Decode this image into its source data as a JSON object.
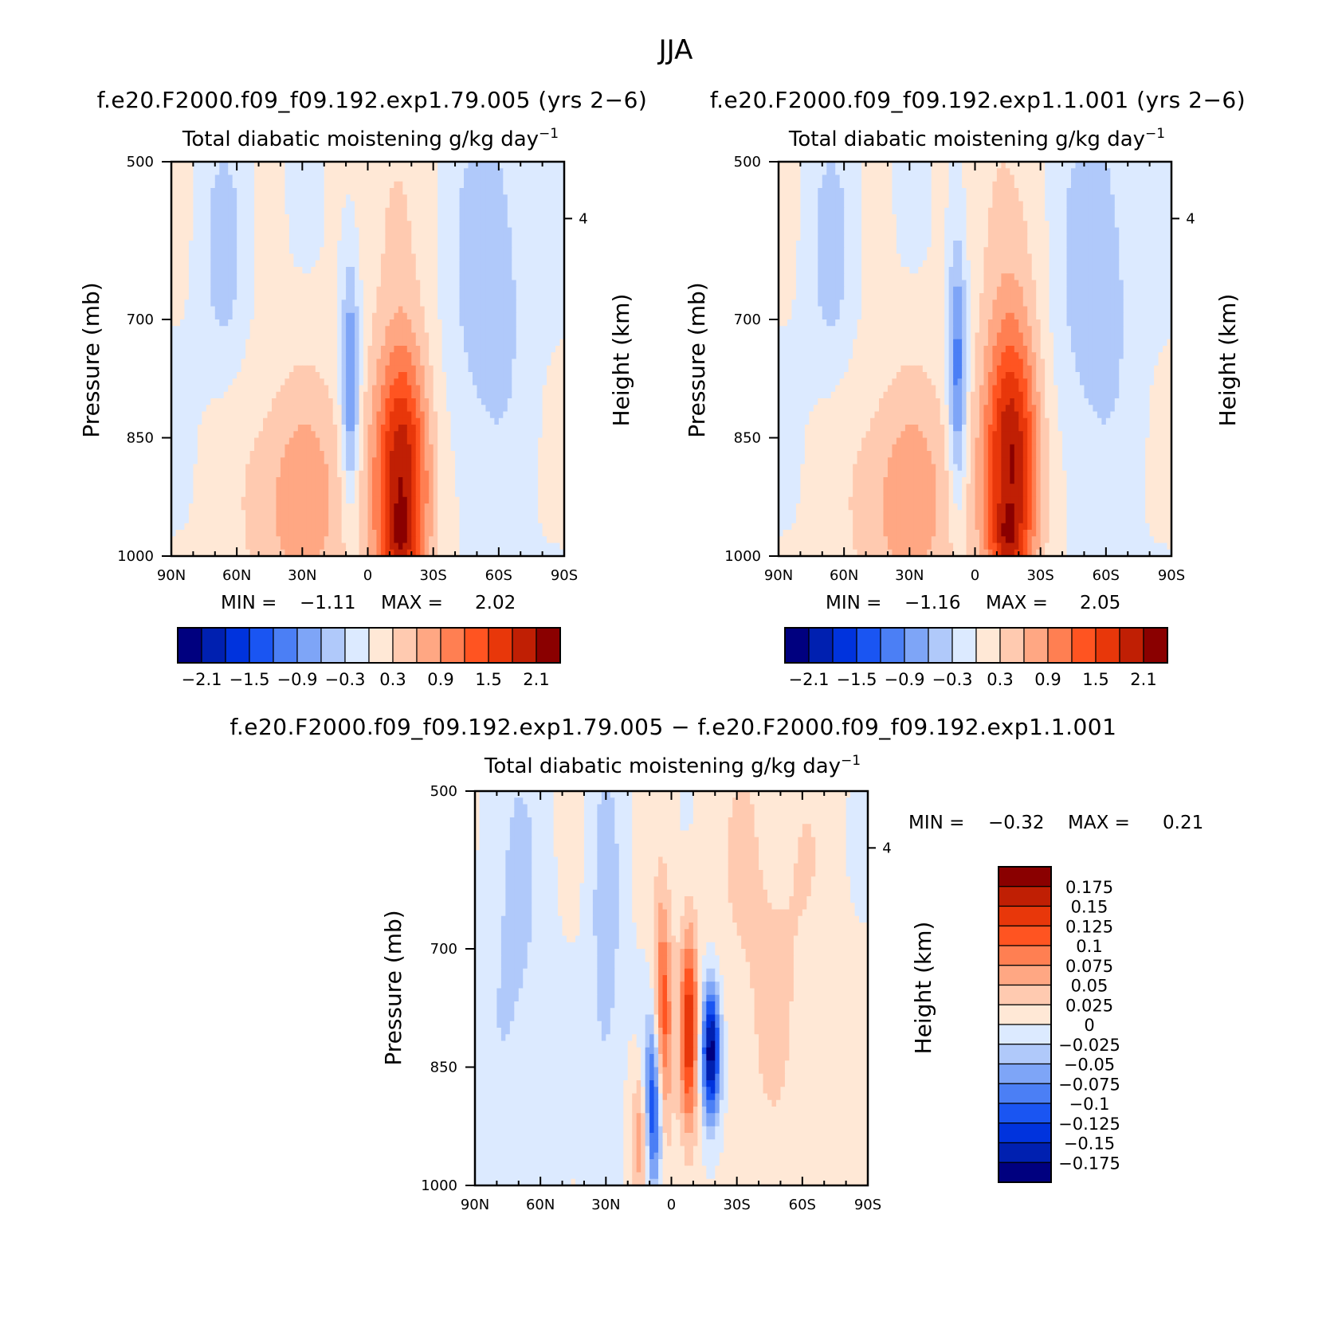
{
  "figure_title": "JJA",
  "colors": {
    "full_scale": [
      "#00007f",
      "#0020b0",
      "#0033dd",
      "#1a55f2",
      "#4b7ff5",
      "#7ea5f7",
      "#b0c9fa",
      "#dceaff",
      "#ffe8d6",
      "#ffcab0",
      "#ffa783",
      "#ff7f52",
      "#ff5421",
      "#e8370a",
      "#c01f04",
      "#8a0000"
    ],
    "diff_scale": [
      "#00007f",
      "#0020b0",
      "#0033dd",
      "#1a55f2",
      "#4b7ff5",
      "#7ea5f7",
      "#b0c9fa",
      "#dceaff",
      "#ffe8d6",
      "#ffcab0",
      "#ffa783",
      "#ff7f52",
      "#ff5421",
      "#e8370a",
      "#c01f04",
      "#8a0000"
    ]
  },
  "chart_data": [
    {
      "type": "heatmap",
      "title": "f.e20.F2000.f09_f09.192.exp1.79.005 (yrs 2−6)",
      "variable": "Total diabatic moistening",
      "units_main": "g/kg day",
      "units_exp": "−1",
      "ylabel": "Pressure (mb)",
      "ylabel_right": "Height (km)",
      "x_ticks": [
        "90N",
        "60N",
        "30N",
        "0",
        "30S",
        "60S",
        "90S"
      ],
      "x_values": [
        90,
        60,
        30,
        0,
        -30,
        -60,
        -90
      ],
      "y_ticks": [
        "500",
        "700",
        "850",
        "1000"
      ],
      "y_values": [
        500,
        700,
        850,
        1000
      ],
      "ylim": [
        1000,
        500
      ],
      "right_ticks": [
        "4"
      ],
      "right_values": [
        4
      ],
      "min_label": "MIN =",
      "min": "−1.11",
      "max_label": "MAX =",
      "max": "2.02",
      "colorbar_labels": [
        "−2.1",
        "−1.5",
        "−0.9",
        "−0.3",
        "0.3",
        "0.9",
        "1.5",
        "2.1"
      ],
      "colorbar_levels": [
        -2.1,
        -1.8,
        -1.5,
        -1.2,
        -0.9,
        -0.6,
        -0.3,
        0,
        0.3,
        0.6,
        0.9,
        1.2,
        1.5,
        1.8,
        2.1
      ],
      "field": [
        {
          "lat": 66,
          "p": 620,
          "slat": 7,
          "sp": 110,
          "amp": -0.45
        },
        {
          "lat": 8,
          "p": 790,
          "slat": 3,
          "sp": 110,
          "amp": -1.1
        },
        {
          "lat": -16,
          "p": 900,
          "slat": 9,
          "sp": 120,
          "amp": 2.0
        },
        {
          "lat": -14,
          "p": 980,
          "slat": 6,
          "sp": 30,
          "amp": 0.6
        },
        {
          "lat": 30,
          "p": 930,
          "slat": 20,
          "sp": 120,
          "amp": 0.75
        },
        {
          "lat": -55,
          "p": 650,
          "slat": 12,
          "sp": 160,
          "amp": -0.55
        },
        {
          "lat": -12,
          "p": 560,
          "slat": 9,
          "sp": 120,
          "amp": 0.35
        }
      ]
    },
    {
      "type": "heatmap",
      "title": "f.e20.F2000.f09_f09.192.exp1.1.001 (yrs 2−6)",
      "variable": "Total diabatic moistening",
      "units_main": "g/kg day",
      "units_exp": "−1",
      "ylabel": "Pressure (mb)",
      "ylabel_right": "Height (km)",
      "x_ticks": [
        "90N",
        "60N",
        "30N",
        "0",
        "30S",
        "60S",
        "90S"
      ],
      "x_values": [
        90,
        60,
        30,
        0,
        -30,
        -60,
        -90
      ],
      "y_ticks": [
        "500",
        "700",
        "850",
        "1000"
      ],
      "y_values": [
        500,
        700,
        850,
        1000
      ],
      "ylim": [
        1000,
        500
      ],
      "right_ticks": [
        "4"
      ],
      "right_values": [
        4
      ],
      "min_label": "MIN =",
      "min": "−1.16",
      "max_label": "MAX =",
      "max": "2.05",
      "colorbar_labels": [
        "−2.1",
        "−1.5",
        "−0.9",
        "−0.3",
        "0.3",
        "0.9",
        "1.5",
        "2.1"
      ],
      "colorbar_levels": [
        -2.1,
        -1.8,
        -1.5,
        -1.2,
        -0.9,
        -0.6,
        -0.3,
        0,
        0.3,
        0.6,
        0.9,
        1.2,
        1.5,
        1.8,
        2.1
      ],
      "field": [
        {
          "lat": 66,
          "p": 620,
          "slat": 7,
          "sp": 110,
          "amp": -0.45
        },
        {
          "lat": 8,
          "p": 770,
          "slat": 3,
          "sp": 120,
          "amp": -1.15
        },
        {
          "lat": -17,
          "p": 880,
          "slat": 9,
          "sp": 130,
          "amp": 2.05
        },
        {
          "lat": -14,
          "p": 980,
          "slat": 6,
          "sp": 30,
          "amp": 0.6
        },
        {
          "lat": 30,
          "p": 930,
          "slat": 20,
          "sp": 120,
          "amp": 0.75
        },
        {
          "lat": -55,
          "p": 650,
          "slat": 12,
          "sp": 160,
          "amp": -0.55
        },
        {
          "lat": -12,
          "p": 560,
          "slat": 9,
          "sp": 120,
          "amp": 0.35
        }
      ]
    },
    {
      "type": "heatmap",
      "title": "f.e20.F2000.f09_f09.192.exp1.79.005 − f.e20.F2000.f09_f09.192.exp1.1.001",
      "variable": "Total diabatic moistening",
      "units_main": "g/kg day",
      "units_exp": "−1",
      "ylabel": "Pressure (mb)",
      "ylabel_right": "Height (km)",
      "x_ticks": [
        "90N",
        "60N",
        "30N",
        "0",
        "30S",
        "60S",
        "90S"
      ],
      "x_values": [
        90,
        60,
        30,
        0,
        -30,
        -60,
        -90
      ],
      "y_ticks": [
        "500",
        "700",
        "850",
        "1000"
      ],
      "y_values": [
        500,
        700,
        850,
        1000
      ],
      "ylim": [
        1000,
        500
      ],
      "right_ticks": [
        "4"
      ],
      "right_values": [
        4
      ],
      "min_label": "MIN =",
      "min": "−0.32",
      "max_label": "MAX =",
      "max": "0.21",
      "colorbar_labels": [
        "0.175",
        "0.15",
        "0.125",
        "0.1",
        "0.075",
        "0.05",
        "0.025",
        "0",
        "−0.025",
        "−0.05",
        "−0.075",
        "−0.1",
        "−0.125",
        "−0.15",
        "−0.175"
      ],
      "colorbar_levels": [
        -0.175,
        -0.15,
        -0.125,
        -0.1,
        -0.075,
        -0.05,
        -0.025,
        0,
        0.025,
        0.05,
        0.075,
        0.1,
        0.125,
        0.15,
        0.175
      ],
      "field": [
        {
          "lat": -8,
          "p": 800,
          "slat": 3,
          "sp": 90,
          "amp": 0.14
        },
        {
          "lat": -18,
          "p": 830,
          "slat": 3,
          "sp": 60,
          "amp": -0.2
        },
        {
          "lat": 8,
          "p": 900,
          "slat": 3,
          "sp": 80,
          "amp": -0.15
        },
        {
          "lat": 4,
          "p": 800,
          "slat": 3,
          "sp": 110,
          "amp": 0.13
        },
        {
          "lat": 14,
          "p": 940,
          "slat": 3,
          "sp": 60,
          "amp": 0.08
        },
        {
          "lat": 30,
          "p": 700,
          "slat": 5,
          "sp": 180,
          "amp": -0.04
        },
        {
          "lat": -45,
          "p": 650,
          "slat": 20,
          "sp": 250,
          "amp": 0.03
        },
        {
          "lat": 72,
          "p": 700,
          "slat": 10,
          "sp": 220,
          "amp": -0.03
        }
      ]
    }
  ]
}
